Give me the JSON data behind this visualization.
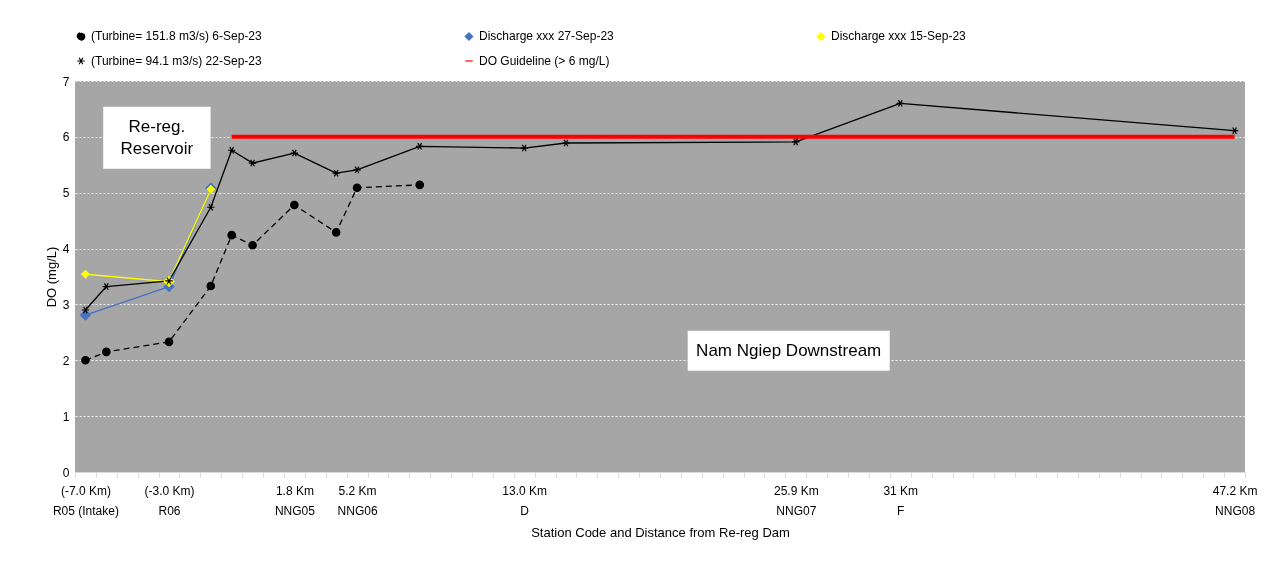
{
  "chart_data": {
    "type": "line",
    "xlabel": "Station Code and Distance from Re-reg Dam",
    "ylabel": "DO (mg/L)",
    "categories": [
      "(-7.0 Km)\nR05 (Intake)",
      null,
      null,
      null,
      "(-3.0 Km)\nR06",
      null,
      null,
      null,
      null,
      null,
      "1.8 Km\nNNG05",
      null,
      null,
      "5.2 Km\nNNG06",
      null,
      null,
      null,
      null,
      null,
      null,
      null,
      "13.0 Km\nD",
      null,
      null,
      null,
      null,
      null,
      null,
      null,
      null,
      null,
      null,
      null,
      null,
      "25.9 Km\nNNG07",
      null,
      null,
      null,
      null,
      "31 Km\nF",
      null,
      null,
      null,
      null,
      null,
      null,
      null,
      null,
      null,
      null,
      null,
      null,
      null,
      null,
      null,
      "47.2 Km\nNNG08"
    ],
    "ylim": [
      0,
      7
    ],
    "yticks": [
      0,
      1,
      2,
      3,
      4,
      5,
      6,
      7
    ],
    "grid": "y",
    "legend": "top",
    "annotations": [
      "Re-reg. Reservoir",
      "Nam Ngiep Downstream"
    ],
    "series": [
      {
        "name": "(Turbine= 151.8 m3/s) 6-Sep-23",
        "color": "#000000",
        "line_style": "dashed",
        "marker": "circle",
        "values": [
          2.0,
          2.15,
          null,
          null,
          2.33,
          null,
          3.33,
          4.24,
          4.06,
          null,
          4.78,
          null,
          4.29,
          5.09,
          null,
          null,
          5.14,
          null,
          null,
          null,
          null,
          null,
          null,
          null,
          null,
          null,
          null,
          null,
          null,
          null,
          null,
          null,
          null,
          null,
          null,
          null,
          null,
          null,
          null,
          null,
          null,
          null,
          null,
          null,
          null,
          null,
          null,
          null,
          null,
          null,
          null,
          null,
          null,
          null,
          null,
          null
        ]
      },
      {
        "name": "Discharge xxx 27-Sep-23",
        "color": "#4472c4",
        "line_style": "solid",
        "marker": "diamond",
        "values": [
          2.81,
          null,
          null,
          null,
          3.32,
          null,
          5.08,
          null,
          null,
          null,
          null,
          null,
          null,
          null,
          null,
          null,
          null,
          null,
          null,
          null,
          null,
          null,
          null,
          null,
          null,
          null,
          null,
          null,
          null,
          null,
          null,
          null,
          null,
          null,
          null,
          null,
          null,
          null,
          null,
          null,
          null,
          null,
          null,
          null,
          null,
          null,
          null,
          null,
          null,
          null,
          null,
          null,
          null,
          null,
          null,
          null
        ]
      },
      {
        "name": "Discharge xxx 15-Sep-23",
        "color": "#ffff00",
        "line_style": "solid",
        "marker": "diamond",
        "values": [
          3.54,
          null,
          null,
          null,
          3.41,
          null,
          5.06,
          null,
          null,
          null,
          null,
          null,
          null,
          null,
          null,
          null,
          null,
          null,
          null,
          null,
          null,
          null,
          null,
          null,
          null,
          null,
          null,
          null,
          null,
          null,
          null,
          null,
          null,
          null,
          null,
          null,
          null,
          null,
          null,
          null,
          null,
          null,
          null,
          null,
          null,
          null,
          null,
          null,
          null,
          null,
          null,
          null,
          null,
          null,
          null,
          null
        ]
      },
      {
        "name": "(Turbine= 94.1 m3/s) 22-Sep-23",
        "color": "#000000",
        "line_style": "solid",
        "marker": "cross",
        "values": [
          2.9,
          3.32,
          null,
          null,
          3.42,
          null,
          4.74,
          5.76,
          5.53,
          null,
          5.71,
          null,
          5.35,
          5.41,
          null,
          null,
          5.83,
          null,
          null,
          null,
          null,
          5.8,
          null,
          5.89,
          null,
          null,
          null,
          null,
          null,
          null,
          null,
          null,
          null,
          null,
          5.91,
          null,
          null,
          null,
          null,
          6.6,
          null,
          null,
          null,
          null,
          null,
          null,
          null,
          null,
          null,
          null,
          null,
          null,
          null,
          null,
          null,
          6.11
        ]
      },
      {
        "name": "DO Guideline (> 6 mg/L)",
        "color": "#ff0000",
        "line_style": "solid",
        "marker": "none",
        "values": [
          null,
          null,
          null,
          null,
          null,
          null,
          null,
          6,
          6,
          6,
          6,
          6,
          6,
          6,
          6,
          6,
          6,
          6,
          6,
          6,
          6,
          6,
          6,
          6,
          6,
          6,
          6,
          6,
          6,
          6,
          6,
          6,
          6,
          6,
          6,
          6,
          6,
          6,
          6,
          6,
          6,
          6,
          6,
          6,
          6,
          6,
          6,
          6,
          6,
          6,
          6,
          6,
          6,
          6,
          6,
          6
        ]
      }
    ]
  }
}
